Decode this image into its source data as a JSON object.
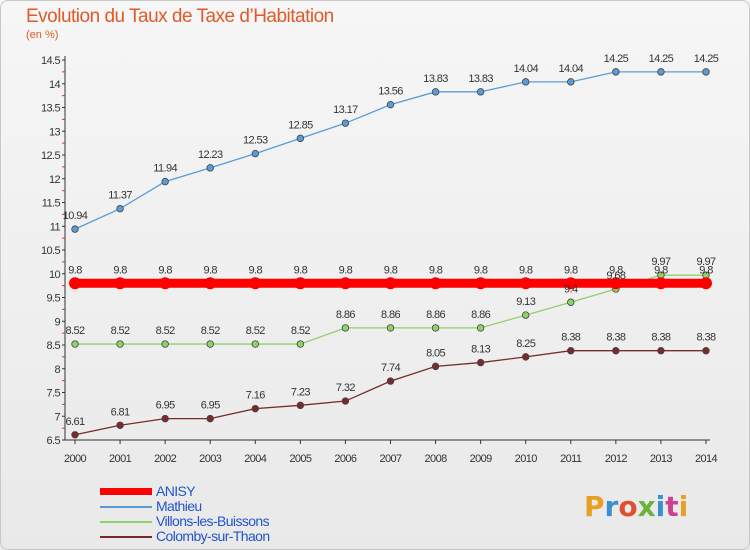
{
  "chart_data": {
    "type": "line",
    "title": "Evolution du Taux de Taxe d’Habitation",
    "subtitle": "(en %)",
    "x": [
      "2000",
      "2001",
      "2002",
      "2003",
      "2004",
      "2005",
      "2006",
      "2007",
      "2008",
      "2009",
      "2010",
      "2011",
      "2012",
      "2013",
      "2014"
    ],
    "yticks": [
      "6.5",
      "7",
      "7.5",
      "8",
      "8.5",
      "9",
      "9.5",
      "10",
      "10.5",
      "11",
      "11.5",
      "12",
      "12.5",
      "13",
      "13.5",
      "14",
      "14.5"
    ],
    "ylim": [
      6.5,
      14.5
    ],
    "grid": false,
    "legend_position": "bottom-left",
    "series": [
      {
        "name": "ANISY",
        "color": "#ff0000",
        "values": [
          9.8,
          9.8,
          9.8,
          9.8,
          9.8,
          9.8,
          9.8,
          9.8,
          9.8,
          9.8,
          9.8,
          9.8,
          9.8,
          9.8,
          9.8
        ],
        "labels": [
          "9.8",
          "9.8",
          "9.8",
          "9.8",
          "9.8",
          "9.8",
          "9.8",
          "9.8",
          "9.8",
          "9.8",
          "9.8",
          "9.8",
          "9.8",
          "9.8",
          "9.8"
        ]
      },
      {
        "name": "Mathieu",
        "color": "#5b9bd5",
        "values": [
          10.94,
          11.37,
          11.94,
          12.23,
          12.53,
          12.85,
          13.17,
          13.56,
          13.83,
          13.83,
          14.04,
          14.04,
          14.25,
          14.25,
          14.25
        ],
        "labels": [
          "10.94",
          "11.37",
          "11.94",
          "12.23",
          "12.53",
          "12.85",
          "13.17",
          "13.56",
          "13.83",
          "13.83",
          "14.04",
          "14.04",
          "14.25",
          "14.25",
          "14.25"
        ]
      },
      {
        "name": "Villons-les-Buissons",
        "color": "#8ed26a",
        "values": [
          8.52,
          8.52,
          8.52,
          8.52,
          8.52,
          8.52,
          8.86,
          8.86,
          8.86,
          8.86,
          9.13,
          9.4,
          9.68,
          9.97,
          9.97
        ],
        "labels": [
          "8.52",
          "8.52",
          "8.52",
          "8.52",
          "8.52",
          "8.52",
          "8.86",
          "8.86",
          "8.86",
          "8.86",
          "9.13",
          "9.4",
          "9.68",
          "9.97",
          "9.97"
        ]
      },
      {
        "name": "Colomby-sur-Thaon",
        "color": "#7a2a2a",
        "values": [
          6.61,
          6.81,
          6.95,
          6.95,
          7.16,
          7.23,
          7.32,
          7.74,
          8.05,
          8.13,
          8.25,
          8.38,
          8.38,
          8.38,
          8.38
        ],
        "labels": [
          "6.61",
          "6.81",
          "6.95",
          "6.95",
          "7.16",
          "7.23",
          "7.32",
          "7.74",
          "8.05",
          "8.13",
          "8.25",
          "8.38",
          "8.38",
          "8.38",
          "8.38"
        ]
      }
    ]
  },
  "branding": {
    "logo_text": "Proxiti",
    "logo_colors": [
      "#e8a020",
      "#3a8fd0",
      "#e05030",
      "#6bb33a",
      "#3a8fd0",
      "#d04090",
      "#e8a020"
    ]
  }
}
